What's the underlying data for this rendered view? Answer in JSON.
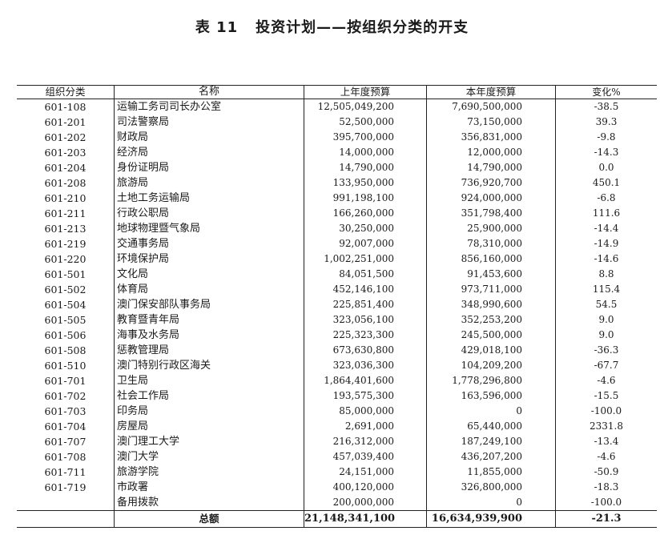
{
  "title": {
    "number": "表 11",
    "text": "投资计划——按组织分类的开支"
  },
  "headers": {
    "code": "组织分类",
    "name": "名称",
    "prev": "上年度预算",
    "curr": "本年度预算",
    "change": "变化%"
  },
  "rows": [
    {
      "code": "601-108",
      "name": "运输工务司司长办公室",
      "prev": "12,505,049,200",
      "curr": "7,690,500,000",
      "change": "-38.5"
    },
    {
      "code": "601-201",
      "name": "司法警察局",
      "prev": "52,500,000",
      "curr": "73,150,000",
      "change": "39.3"
    },
    {
      "code": "601-202",
      "name": "财政局",
      "prev": "395,700,000",
      "curr": "356,831,000",
      "change": "-9.8"
    },
    {
      "code": "601-203",
      "name": "经济局",
      "prev": "14,000,000",
      "curr": "12,000,000",
      "change": "-14.3"
    },
    {
      "code": "601-204",
      "name": "身份证明局",
      "prev": "14,790,000",
      "curr": "14,790,000",
      "change": "0.0"
    },
    {
      "code": "601-208",
      "name": "旅游局",
      "prev": "133,950,000",
      "curr": "736,920,700",
      "change": "450.1"
    },
    {
      "code": "601-210",
      "name": "土地工务运输局",
      "prev": "991,198,100",
      "curr": "924,000,000",
      "change": "-6.8"
    },
    {
      "code": "601-211",
      "name": "行政公职局",
      "prev": "166,260,000",
      "curr": "351,798,400",
      "change": "111.6"
    },
    {
      "code": "601-213",
      "name": "地球物理暨气象局",
      "prev": "30,250,000",
      "curr": "25,900,000",
      "change": "-14.4"
    },
    {
      "code": "601-219",
      "name": "交通事务局",
      "prev": "92,007,000",
      "curr": "78,310,000",
      "change": "-14.9"
    },
    {
      "code": "601-220",
      "name": "环境保护局",
      "prev": "1,002,251,000",
      "curr": "856,160,000",
      "change": "-14.6"
    },
    {
      "code": "601-501",
      "name": "文化局",
      "prev": "84,051,500",
      "curr": "91,453,600",
      "change": "8.8"
    },
    {
      "code": "601-502",
      "name": "体育局",
      "prev": "452,146,100",
      "curr": "973,711,000",
      "change": "115.4"
    },
    {
      "code": "601-504",
      "name": "澳门保安部队事务局",
      "prev": "225,851,400",
      "curr": "348,990,600",
      "change": "54.5"
    },
    {
      "code": "601-505",
      "name": "教育暨青年局",
      "prev": "323,056,100",
      "curr": "352,253,200",
      "change": "9.0"
    },
    {
      "code": "601-506",
      "name": "海事及水务局",
      "prev": "225,323,300",
      "curr": "245,500,000",
      "change": "9.0"
    },
    {
      "code": "601-508",
      "name": "惩教管理局",
      "prev": "673,630,800",
      "curr": "429,018,100",
      "change": "-36.3"
    },
    {
      "code": "601-510",
      "name": "澳门特别行政区海关",
      "prev": "323,036,300",
      "curr": "104,209,200",
      "change": "-67.7"
    },
    {
      "code": "601-701",
      "name": "卫生局",
      "prev": "1,864,401,600",
      "curr": "1,778,296,800",
      "change": "-4.6"
    },
    {
      "code": "601-702",
      "name": "社会工作局",
      "prev": "193,575,300",
      "curr": "163,596,000",
      "change": "-15.5"
    },
    {
      "code": "601-703",
      "name": "印务局",
      "prev": "85,000,000",
      "curr": "0",
      "change": "-100.0"
    },
    {
      "code": "601-704",
      "name": "房屋局",
      "prev": "2,691,000",
      "curr": "65,440,000",
      "change": "2331.8"
    },
    {
      "code": "601-707",
      "name": "澳门理工大学",
      "prev": "216,312,000",
      "curr": "187,249,100",
      "change": "-13.4"
    },
    {
      "code": "601-708",
      "name": "澳门大学",
      "prev": "457,039,400",
      "curr": "436,207,200",
      "change": "-4.6"
    },
    {
      "code": "601-711",
      "name": "旅游学院",
      "prev": "24,151,000",
      "curr": "11,855,000",
      "change": "-50.9"
    },
    {
      "code": "601-719",
      "name": "市政署",
      "prev": "400,120,000",
      "curr": "326,800,000",
      "change": "-18.3"
    },
    {
      "code": "",
      "name": "备用拨款",
      "prev": "200,000,000",
      "curr": "0",
      "change": "-100.0"
    }
  ],
  "total": {
    "label": "总额",
    "prev": "21,148,341,100",
    "curr": "16,634,939,900",
    "change": "-21.3"
  }
}
